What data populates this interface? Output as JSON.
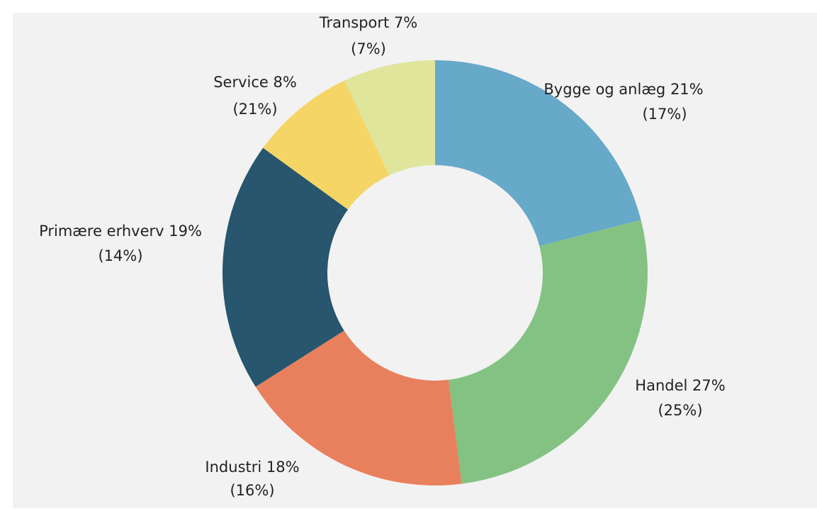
{
  "chart_data": {
    "type": "donut",
    "categories": [
      "Bygge og anlæg",
      "Handel",
      "Industri",
      "Primære erhverv",
      "Service",
      "Transport"
    ],
    "values": [
      21,
      27,
      18,
      19,
      8,
      7
    ],
    "value_labels": [
      "Bygge og anlæg 21%",
      "Handel 27%",
      "Industri 18%",
      "Primære erhverv 19%",
      "Service 8%",
      "Transport 7%"
    ],
    "prior_values": [
      17,
      25,
      16,
      14,
      21,
      7
    ],
    "prior_value_labels": [
      "(17%)",
      "(25%)",
      "(16%)",
      "(14%)",
      "(21%)",
      "(7%)"
    ],
    "colors": [
      "#67a9c9",
      "#84c283",
      "#e9805d",
      "#27566e",
      "#f5d565",
      "#dfe59b"
    ]
  }
}
